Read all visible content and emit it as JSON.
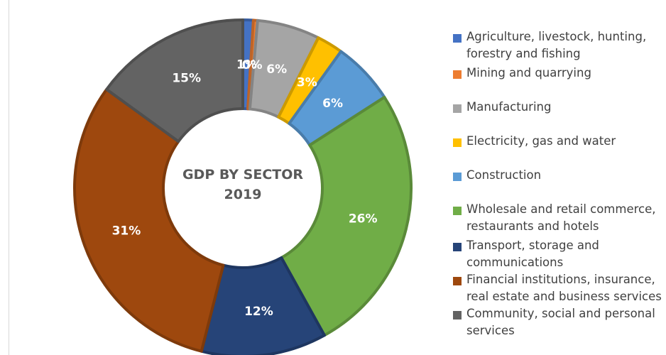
{
  "chart_data": {
    "type": "pie",
    "title": "GDP BY SECTOR 2019",
    "center_lines": [
      "GDP BY SECTOR",
      "2019"
    ],
    "legend_position": "right",
    "slices": [
      {
        "name": "Agriculture, livestock, hunting, forestry and fishing",
        "value": 1,
        "label": "1%",
        "color": "#4472c4"
      },
      {
        "name": "Mining and quarrying",
        "value": 0.4,
        "label": "0%",
        "color": "#ed7d31"
      },
      {
        "name": "Manufacturing",
        "value": 6,
        "label": "6%",
        "color": "#a5a5a5"
      },
      {
        "name": "Electricity, gas and water",
        "value": 2.5,
        "label": "3%",
        "color": "#ffc000"
      },
      {
        "name": "Construction",
        "value": 6,
        "label": "6%",
        "color": "#5b9bd5"
      },
      {
        "name": "Wholesale and retail commerce, restaurants and hotels",
        "value": 26,
        "label": "26%",
        "color": "#70ad47"
      },
      {
        "name": "Transport, storage and communications",
        "value": 12,
        "label": "12%",
        "color": "#264478"
      },
      {
        "name": "Financial institutions, insurance, real estate and business services",
        "value": 31,
        "label": "31%",
        "color": "#9e480e"
      },
      {
        "name": "Community, social and personal services",
        "value": 15,
        "label": "15%",
        "color": "#636363"
      }
    ]
  },
  "legend": {
    "items": [
      {
        "lines": [
          "Agriculture, livestock, hunting,",
          "forestry and fishing"
        ],
        "color": "#4472c4"
      },
      {
        "lines": [
          "Mining and quarrying"
        ],
        "color": "#ed7d31"
      },
      {
        "lines": [
          "Manufacturing"
        ],
        "color": "#a5a5a5"
      },
      {
        "lines": [
          "Electricity, gas and water"
        ],
        "color": "#ffc000"
      },
      {
        "lines": [
          "Construction"
        ],
        "color": "#5b9bd5"
      },
      {
        "lines": [
          "Wholesale and retail commerce,",
          "restaurants and hotels"
        ],
        "color": "#70ad47"
      },
      {
        "lines": [
          "Transport, storage and",
          "communications"
        ],
        "color": "#264478"
      },
      {
        "lines": [
          "Financial institutions, insurance,",
          "real estate and business services"
        ],
        "color": "#9e480e"
      },
      {
        "lines": [
          "Community, social and personal",
          "services"
        ],
        "color": "#636363"
      }
    ]
  }
}
